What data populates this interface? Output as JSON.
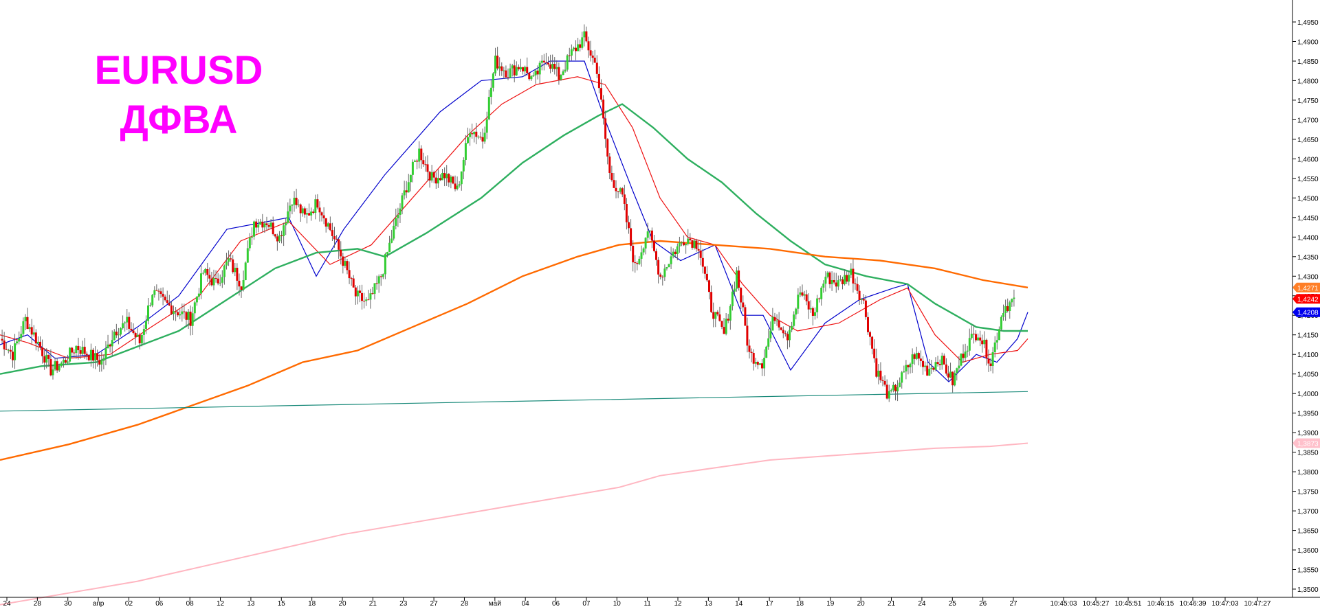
{
  "chart_data": {
    "type": "candlestick",
    "title": [
      "EURUSD",
      "ДФВА"
    ],
    "ylim": [
      1.348,
      1.498
    ],
    "y_ticks": [
      "1,4950",
      "1,4900",
      "1,4850",
      "1,4800",
      "1,4750",
      "1,4700",
      "1,4650",
      "1,4600",
      "1,4550",
      "1,4500",
      "1,4450",
      "1,4400",
      "1,4350",
      "1,4300",
      "1,4250",
      "1,4200",
      "1,4150",
      "1,4100",
      "1,4050",
      "1,4000",
      "1,3950",
      "1,3900",
      "1,3850",
      "1,3800",
      "1,3750",
      "1,3700",
      "1,3650",
      "1,3600",
      "1,3550",
      "1,3500"
    ],
    "x_labels": [
      "24",
      "28",
      "30",
      "апр",
      "02",
      "06",
      "08",
      "12",
      "13",
      "15",
      "18",
      "20",
      "21",
      "23",
      "27",
      "28",
      "май",
      "04",
      "06",
      "07",
      "10",
      "11",
      "12",
      "13",
      "14",
      "17",
      "18",
      "19",
      "20",
      "21",
      "24",
      "25",
      "26",
      "27",
      "10:45:03",
      "10:45:27",
      "10:45:51",
      "10:46:15",
      "10:46:39",
      "10:47:03",
      "10:47:27"
    ],
    "price_tags": [
      {
        "text": "1,4271",
        "value": 1.4271,
        "color": "#ff7f27"
      },
      {
        "text": "1,4242",
        "value": 1.4242,
        "color": "#ff0000"
      },
      {
        "text": "1,4208",
        "value": 1.4208,
        "color": "#0000ee"
      },
      {
        "text": "1,3873",
        "value": 1.3873,
        "color": "#ffc0cb"
      }
    ],
    "close_path": [
      1.414,
      1.41,
      1.419,
      1.413,
      1.406,
      1.408,
      1.412,
      1.41,
      1.408,
      1.416,
      1.418,
      1.413,
      1.426,
      1.423,
      1.421,
      1.419,
      1.431,
      1.428,
      1.434,
      1.428,
      1.444,
      1.444,
      1.44,
      1.45,
      1.445,
      1.449,
      1.442,
      1.434,
      1.425,
      1.423,
      1.43,
      1.442,
      1.453,
      1.462,
      1.455,
      1.456,
      1.452,
      1.468,
      1.465,
      1.485,
      1.482,
      1.484,
      1.48,
      1.486,
      1.481,
      1.487,
      1.491,
      1.483,
      1.456,
      1.45,
      1.432,
      1.442,
      1.43,
      1.436,
      1.44,
      1.438,
      1.422,
      1.415,
      1.431,
      1.41,
      1.408,
      1.42,
      1.415,
      1.426,
      1.42,
      1.43,
      1.428,
      1.431,
      1.423,
      1.406,
      1.399,
      1.404,
      1.41,
      1.406,
      1.409,
      1.403,
      1.412,
      1.416,
      1.408,
      1.422,
      1.4242
    ],
    "series": [
      {
        "name": "fast",
        "color": "#0000cc",
        "points": [
          [
            0,
            1.4125
          ],
          [
            40,
            1.415
          ],
          [
            80,
            1.409
          ],
          [
            140,
            1.41
          ],
          [
            200,
            1.417
          ],
          [
            260,
            1.425
          ],
          [
            330,
            1.442
          ],
          [
            420,
            1.445
          ],
          [
            460,
            1.43
          ],
          [
            500,
            1.442
          ],
          [
            560,
            1.456
          ],
          [
            640,
            1.472
          ],
          [
            700,
            1.48
          ],
          [
            760,
            1.481
          ],
          [
            800,
            1.485
          ],
          [
            850,
            1.485
          ],
          [
            880,
            1.47
          ],
          [
            920,
            1.452
          ],
          [
            950,
            1.439
          ],
          [
            990,
            1.434
          ],
          [
            1040,
            1.438
          ],
          [
            1080,
            1.42
          ],
          [
            1110,
            1.42
          ],
          [
            1150,
            1.406
          ],
          [
            1200,
            1.418
          ],
          [
            1250,
            1.424
          ],
          [
            1300,
            1.427
          ],
          [
            1320,
            1.428
          ],
          [
            1350,
            1.408
          ],
          [
            1380,
            1.403
          ],
          [
            1420,
            1.41
          ],
          [
            1450,
            1.408
          ],
          [
            1480,
            1.414
          ],
          [
            1495,
            1.4208
          ]
        ]
      },
      {
        "name": "medium",
        "color": "#ee1111",
        "points": [
          [
            0,
            1.415
          ],
          [
            40,
            1.413
          ],
          [
            100,
            1.409
          ],
          [
            160,
            1.41
          ],
          [
            220,
            1.417
          ],
          [
            290,
            1.425
          ],
          [
            350,
            1.439
          ],
          [
            420,
            1.444
          ],
          [
            480,
            1.433
          ],
          [
            540,
            1.438
          ],
          [
            600,
            1.45
          ],
          [
            680,
            1.466
          ],
          [
            730,
            1.474
          ],
          [
            780,
            1.479
          ],
          [
            840,
            1.481
          ],
          [
            880,
            1.479
          ],
          [
            920,
            1.468
          ],
          [
            960,
            1.45
          ],
          [
            1000,
            1.44
          ],
          [
            1040,
            1.438
          ],
          [
            1080,
            1.428
          ],
          [
            1120,
            1.42
          ],
          [
            1160,
            1.416
          ],
          [
            1220,
            1.418
          ],
          [
            1280,
            1.424
          ],
          [
            1320,
            1.427
          ],
          [
            1360,
            1.415
          ],
          [
            1400,
            1.408
          ],
          [
            1440,
            1.41
          ],
          [
            1480,
            1.411
          ],
          [
            1495,
            1.414
          ]
        ]
      },
      {
        "name": "ma-green",
        "color": "#2eaf5f",
        "points": [
          [
            0,
            1.405
          ],
          [
            60,
            1.407
          ],
          [
            140,
            1.408
          ],
          [
            200,
            1.412
          ],
          [
            260,
            1.416
          ],
          [
            330,
            1.424
          ],
          [
            400,
            1.432
          ],
          [
            460,
            1.436
          ],
          [
            520,
            1.437
          ],
          [
            560,
            1.435
          ],
          [
            620,
            1.441
          ],
          [
            700,
            1.45
          ],
          [
            760,
            1.459
          ],
          [
            820,
            1.466
          ],
          [
            870,
            1.471
          ],
          [
            905,
            1.474
          ],
          [
            950,
            1.468
          ],
          [
            1000,
            1.46
          ],
          [
            1050,
            1.454
          ],
          [
            1100,
            1.446
          ],
          [
            1150,
            1.439
          ],
          [
            1200,
            1.433
          ],
          [
            1260,
            1.43
          ],
          [
            1320,
            1.428
          ],
          [
            1360,
            1.423
          ],
          [
            1420,
            1.417
          ],
          [
            1460,
            1.416
          ],
          [
            1495,
            1.416
          ]
        ]
      },
      {
        "name": "ma-orange",
        "color": "#ff6a00",
        "points": [
          [
            0,
            1.383
          ],
          [
            100,
            1.387
          ],
          [
            200,
            1.392
          ],
          [
            280,
            1.397
          ],
          [
            360,
            1.402
          ],
          [
            440,
            1.408
          ],
          [
            520,
            1.411
          ],
          [
            600,
            1.417
          ],
          [
            680,
            1.423
          ],
          [
            760,
            1.43
          ],
          [
            840,
            1.435
          ],
          [
            900,
            1.438
          ],
          [
            960,
            1.439
          ],
          [
            1040,
            1.438
          ],
          [
            1120,
            1.437
          ],
          [
            1200,
            1.435
          ],
          [
            1280,
            1.434
          ],
          [
            1360,
            1.432
          ],
          [
            1430,
            1.429
          ],
          [
            1495,
            1.4271
          ]
        ]
      },
      {
        "name": "ma-pink",
        "color": "#ffb6c1",
        "points": [
          [
            0,
            1.346
          ],
          [
            100,
            1.349
          ],
          [
            200,
            1.352
          ],
          [
            300,
            1.356
          ],
          [
            400,
            1.36
          ],
          [
            500,
            1.364
          ],
          [
            600,
            1.367
          ],
          [
            700,
            1.37
          ],
          [
            800,
            1.373
          ],
          [
            900,
            1.376
          ],
          [
            960,
            1.379
          ],
          [
            1040,
            1.381
          ],
          [
            1120,
            1.383
          ],
          [
            1200,
            1.384
          ],
          [
            1280,
            1.385
          ],
          [
            1360,
            1.386
          ],
          [
            1440,
            1.3865
          ],
          [
            1495,
            1.3873
          ]
        ]
      },
      {
        "name": "trend-line",
        "color": "#1a8a7a",
        "points": [
          [
            0,
            1.3955
          ],
          [
            1495,
            1.4005
          ]
        ]
      }
    ]
  }
}
